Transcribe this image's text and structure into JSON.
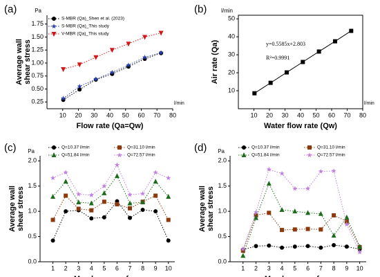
{
  "chart_data": [
    {
      "type": "line",
      "label": "(a)",
      "xlabel": "Flow rate (Qa=Qw)",
      "ylabel": [
        "Average wall",
        "shear stress"
      ],
      "yunit": "Pa",
      "xunit": "l/min",
      "x": [
        10.37,
        20.74,
        31.1,
        41.47,
        51.84,
        62.21,
        72.57
      ],
      "xlim": [
        0,
        80
      ],
      "xticks": [
        10,
        20,
        30,
        40,
        50,
        60,
        70,
        80
      ],
      "ylim": [
        0.12,
        1.92
      ],
      "yticks": [
        {
          "value": 0.25,
          "label": "0.25"
        },
        {
          "value": 0.5,
          "label": "0.50"
        },
        {
          "value": 0.75,
          "label": "0.75"
        },
        {
          "value": 1,
          "label": "1.00"
        },
        {
          "value": 1.25,
          "label": "1.25"
        },
        {
          "value": 1.5,
          "label": "1.50"
        },
        {
          "value": 1.75,
          "label": "1.75"
        }
      ],
      "line_style": "dotted",
      "legend": "upper left",
      "series": [
        {
          "name": "S-MBR (Qa)_Shen et al. (2023)",
          "color": "#000000",
          "marker": "circle",
          "values": [
            0.29,
            0.49,
            0.68,
            0.79,
            0.93,
            1.08,
            1.19
          ]
        },
        {
          "name": "S-MBR (Qa)_This study",
          "color": "#2a3fb0",
          "marker": "star",
          "values": [
            0.32,
            0.55,
            0.69,
            0.82,
            0.96,
            1.11,
            1.2
          ]
        },
        {
          "name": "V-MBR (Qa)_This study",
          "color": "#d01818",
          "marker": "triangle-down",
          "values": [
            0.88,
            0.97,
            1.11,
            1.25,
            1.37,
            1.5,
            1.58
          ]
        }
      ]
    },
    {
      "type": "line",
      "label": "(b)",
      "xlabel": "Water flow rate (Qw)",
      "ylabel": [
        "Air rate (Qa)"
      ],
      "yunit": "l/min",
      "xunit": "l/min",
      "x": [
        10.37,
        20.74,
        31.1,
        41.47,
        51.84,
        62.21,
        72.57
      ],
      "xlim": [
        0,
        80
      ],
      "xticks": [
        10,
        20,
        30,
        40,
        50,
        60,
        70,
        80
      ],
      "ylim": [
        0,
        52
      ],
      "yticks": [
        10,
        20,
        30,
        40,
        50
      ],
      "line_style": "solid",
      "frame": true,
      "annotations": [
        "y=0.5585x+2.803",
        "R²=0.9991"
      ],
      "series": [
        {
          "name": null,
          "color": "#000000",
          "marker": "square",
          "values": [
            8.6,
            14.4,
            20.2,
            26.0,
            31.8,
            37.5,
            43.3
          ]
        }
      ]
    },
    {
      "type": "line",
      "label": "(c)",
      "xlabel": "Membrane surface",
      "ylabel": [
        "Average wall",
        "shear stress"
      ],
      "yunit": "Pa",
      "x": [
        1,
        2,
        3,
        4,
        5,
        6,
        7,
        8,
        9,
        10
      ],
      "xlim": [
        0,
        10.5
      ],
      "xticks": [
        1,
        2,
        3,
        4,
        5,
        6,
        7,
        8,
        9,
        10
      ],
      "ylim": [
        0,
        2.1
      ],
      "yticks": [
        {
          "value": 0,
          "label": "0.0"
        },
        {
          "value": 0.5,
          "label": "0.5"
        },
        {
          "value": 1,
          "label": "1.0"
        },
        {
          "value": 1.5,
          "label": "1.5"
        },
        {
          "value": 2,
          "label": "2.0"
        }
      ],
      "line_style": "dotted",
      "legend": "top",
      "series": [
        {
          "name": "Q=10.37 l/min",
          "color": "#000000",
          "marker": "circle",
          "values": [
            0.42,
            1.0,
            1.02,
            0.86,
            0.88,
            1.2,
            0.87,
            1.03,
            1.0,
            0.42
          ]
        },
        {
          "name": "Q=31.10 l/min",
          "color": "#8b3a0e",
          "marker": "square",
          "values": [
            0.83,
            1.31,
            1.05,
            1.02,
            1.19,
            1.14,
            1.06,
            1.19,
            1.31,
            0.83
          ]
        },
        {
          "name": "Q=51.84 l/min",
          "color": "#1d6b1d",
          "marker": "triangle",
          "values": [
            1.29,
            1.59,
            1.18,
            1.16,
            1.36,
            1.7,
            1.16,
            1.18,
            1.59,
            1.29
          ]
        },
        {
          "name": "Q=72.57 l/min",
          "color": "#c080e0",
          "marker": "star",
          "values": [
            1.66,
            1.77,
            1.34,
            1.32,
            1.5,
            1.92,
            1.33,
            1.35,
            1.77,
            1.66
          ]
        }
      ]
    },
    {
      "type": "line",
      "label": "(d)",
      "xlabel": "Membrane surface",
      "ylabel": [
        "Average wall",
        "shear stress"
      ],
      "yunit": "Pa",
      "x": [
        1,
        2,
        3,
        4,
        5,
        6,
        7,
        8,
        9,
        10
      ],
      "xlim": [
        0,
        10.5
      ],
      "xticks": [
        1,
        2,
        3,
        4,
        5,
        6,
        7,
        8,
        9,
        10
      ],
      "ylim": [
        0,
        2.1
      ],
      "yticks": [
        {
          "value": 0,
          "label": "0.0"
        },
        {
          "value": 0.5,
          "label": "0.5"
        },
        {
          "value": 1,
          "label": "1.0"
        },
        {
          "value": 1.5,
          "label": "1.5"
        },
        {
          "value": 2,
          "label": "2.0"
        }
      ],
      "line_style": "dotted",
      "legend": "top",
      "series": [
        {
          "name": "Q=10.37 l/min",
          "color": "#000000",
          "marker": "circle",
          "values": [
            0.24,
            0.31,
            0.32,
            0.28,
            0.3,
            0.31,
            0.28,
            0.33,
            0.3,
            0.25
          ]
        },
        {
          "name": "Q=31.10 l/min",
          "color": "#8b3a0e",
          "marker": "square",
          "values": [
            0.22,
            0.92,
            0.97,
            0.63,
            0.64,
            0.65,
            0.64,
            0.92,
            0.8,
            0.29
          ]
        },
        {
          "name": "Q=51.84 l/min",
          "color": "#1d6b1d",
          "marker": "triangle",
          "values": [
            0.12,
            0.87,
            1.55,
            1.03,
            1.0,
            0.97,
            0.95,
            0.52,
            0.88,
            0.3
          ]
        },
        {
          "name": "Q=72.57 l/min",
          "color": "#c080e0",
          "marker": "star",
          "values": [
            0.25,
            0.98,
            1.83,
            1.75,
            1.45,
            1.45,
            1.79,
            1.8,
            0.74,
            0.19
          ]
        }
      ]
    }
  ]
}
